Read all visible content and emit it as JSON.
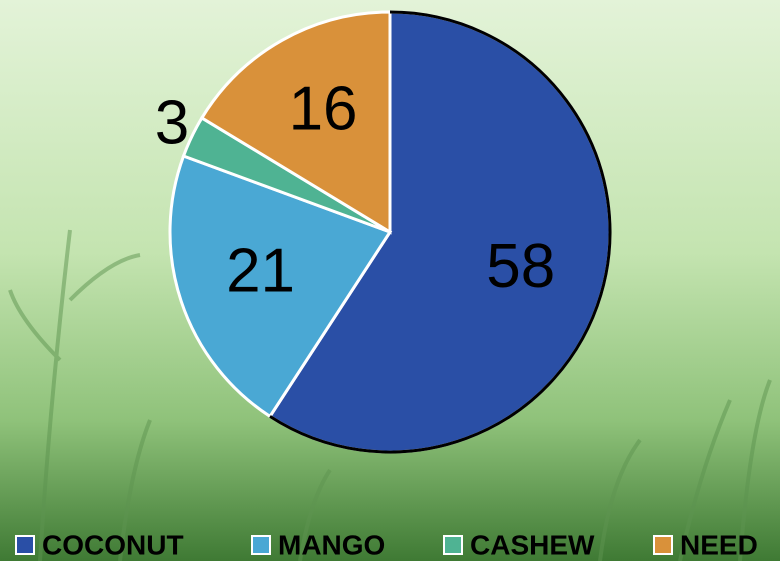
{
  "chart_data": {
    "type": "pie",
    "categories": [
      "COCONUT",
      "MANGO",
      "CASHEW",
      "NEED"
    ],
    "values": [
      58,
      21,
      3,
      16
    ],
    "colors": [
      "#2a4fa6",
      "#4aa8d4",
      "#4fb393",
      "#d9913a"
    ],
    "legend": "bottom"
  }
}
